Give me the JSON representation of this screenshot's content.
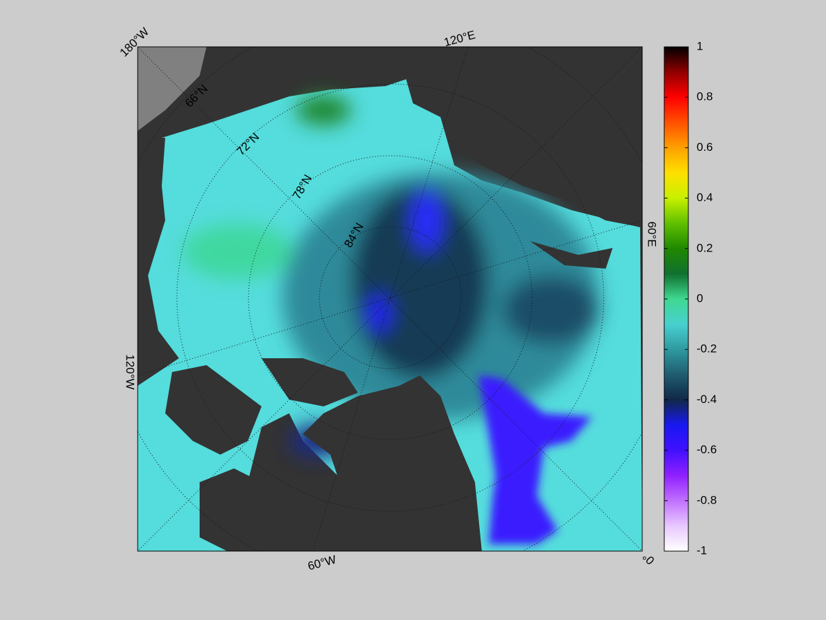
{
  "map": {
    "longitude_labels": [
      "180°W",
      "120°E",
      "60°E",
      "0°",
      "60°W",
      "120°W"
    ],
    "latitude_labels": [
      "66°N",
      "72°N",
      "78°N",
      "84°N"
    ]
  },
  "colorbar": {
    "lim": [
      -1,
      1
    ],
    "ticks": [
      1,
      0.8,
      0.6,
      0.4,
      0.2,
      0,
      -0.2,
      -0.4,
      -0.6,
      -0.8,
      -1
    ],
    "colors": [
      "#ffffff",
      "#e8c8ff",
      "#c070ff",
      "#9020ff",
      "#4010ff",
      "#1818f0",
      "#102848",
      "#1f5c70",
      "#2f9aa0",
      "#48d0d0",
      "#40d890",
      "#107030",
      "#208800",
      "#60c000",
      "#c8f000",
      "#ffe000",
      "#ffa000",
      "#ff5000",
      "#ff0000",
      "#900000",
      "#000000"
    ]
  }
}
